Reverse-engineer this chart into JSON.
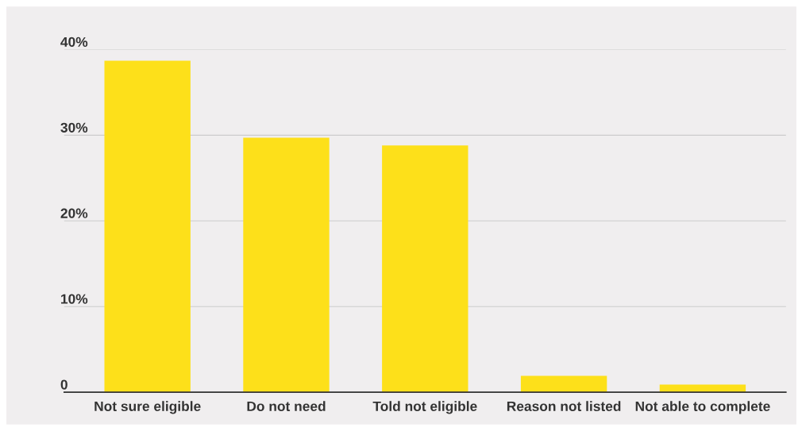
{
  "chart_data": {
    "type": "bar",
    "categories": [
      "Not sure eligible",
      "Do not need",
      "Told not eligible",
      "Reason not listed",
      "Not able to complete"
    ],
    "values": [
      38.7,
      29.7,
      28.8,
      1.9,
      0.9
    ],
    "color": "#fde01a",
    "ylim": [
      0,
      40
    ],
    "yticks": [
      {
        "value": 0,
        "label": "0"
      },
      {
        "value": 10,
        "label": "10%"
      },
      {
        "value": 20,
        "label": "20%"
      },
      {
        "value": 30,
        "label": "30%"
      },
      {
        "value": 40,
        "label": "40%"
      }
    ],
    "grid": "y"
  }
}
